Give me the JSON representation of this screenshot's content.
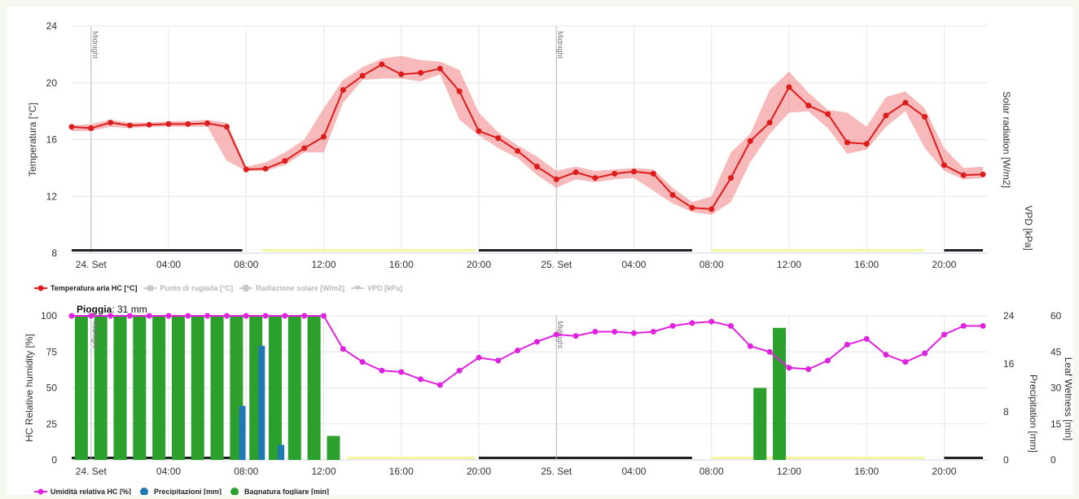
{
  "chart_data": [
    {
      "type": "line",
      "ylabel": "Temperatura [°C]",
      "ylim": [
        8,
        24
      ],
      "yticks": [
        "8",
        "12",
        "16",
        "20",
        "24"
      ],
      "right_axis_labels": [
        "Solar radiation [W/m2]",
        "VPD [kPa]"
      ],
      "x_tick_labels": [
        "24. Set",
        "04:00",
        "08:00",
        "12:00",
        "16:00",
        "20:00",
        "25. Set",
        "04:00",
        "08:00",
        "12:00",
        "16:00",
        "20:00"
      ],
      "x_tick_hours": [
        0,
        4,
        8,
        12,
        16,
        20,
        24,
        28,
        32,
        36,
        40,
        44
      ],
      "midnight_label": "Midnight",
      "midnight_hours": [
        0,
        24
      ],
      "x_hours": [
        -1,
        0,
        1,
        2,
        3,
        4,
        5,
        6,
        7,
        8,
        9,
        10,
        11,
        12,
        13,
        14,
        15,
        16,
        17,
        18,
        19,
        20,
        21,
        22,
        23,
        24,
        25,
        26,
        27,
        28,
        29,
        30,
        31,
        32,
        33,
        34,
        35,
        36,
        37,
        38,
        39,
        40,
        41,
        42,
        43,
        44,
        45,
        46
      ],
      "series": [
        {
          "name": "Temperatura aria HC [°C]",
          "color": "#dd1c1c",
          "values": [
            16.9,
            16.8,
            17.2,
            17.0,
            17.05,
            17.1,
            17.1,
            17.15,
            16.9,
            13.9,
            13.95,
            14.5,
            15.4,
            16.2,
            19.5,
            20.5,
            21.3,
            20.6,
            20.7,
            21.0,
            19.4,
            16.6,
            16.1,
            15.2,
            14.1,
            13.2,
            13.7,
            13.3,
            13.6,
            13.75,
            13.6,
            12.1,
            11.2,
            11.1,
            13.3,
            15.9,
            17.2,
            19.7,
            18.4,
            17.8,
            15.8,
            15.7,
            17.7,
            18.6,
            17.6,
            14.2,
            13.5,
            13.55
          ],
          "range_low": [
            16.6,
            16.6,
            16.9,
            16.8,
            16.9,
            16.9,
            16.9,
            16.9,
            14.5,
            13.8,
            13.8,
            14.2,
            15.1,
            15.1,
            18.6,
            20.2,
            20.3,
            20.3,
            20.1,
            20.6,
            17.4,
            16.3,
            15.4,
            14.7,
            13.5,
            12.6,
            13.2,
            13.0,
            13.2,
            13.3,
            12.4,
            11.5,
            10.9,
            10.7,
            11.6,
            14.4,
            16.4,
            17.9,
            18.0,
            16.8,
            15.0,
            15.3,
            16.9,
            18.0,
            15.4,
            13.8,
            13.2,
            13.3
          ],
          "range_high": [
            17.0,
            17.1,
            17.4,
            17.2,
            17.2,
            17.3,
            17.3,
            17.4,
            17.2,
            14.1,
            14.4,
            15.1,
            16.0,
            18.2,
            20.2,
            21.1,
            21.7,
            21.9,
            21.6,
            21.5,
            20.9,
            17.9,
            16.5,
            15.6,
            14.8,
            13.8,
            14.1,
            13.8,
            13.9,
            14.0,
            13.9,
            12.6,
            11.6,
            12.0,
            15.1,
            16.4,
            19.5,
            20.8,
            19.3,
            18.1,
            17.9,
            16.9,
            19.0,
            19.4,
            18.2,
            15.4,
            14.0,
            14.1
          ]
        }
      ],
      "day_night_bars": [
        {
          "from": -1,
          "to": 7.8,
          "color": "#222222"
        },
        {
          "from": 8.8,
          "to": 19.8,
          "color": "#f5f5a0"
        },
        {
          "from": 20.0,
          "to": 31.0,
          "color": "#222222"
        },
        {
          "from": 32.0,
          "to": 43.0,
          "color": "#f5f5a0"
        },
        {
          "from": 44.0,
          "to": 46.0,
          "color": "#222222"
        }
      ],
      "legend": [
        {
          "label": "Temperatura aria HC [°C]",
          "active": true,
          "color": "#dd1c1c"
        },
        {
          "label": "Punto di rugiada [°C]",
          "active": false,
          "color": "#c8c8c8"
        },
        {
          "label": "Radiazione solare [W/m2]",
          "active": false,
          "color": "#c8c8c8"
        },
        {
          "label": "VPD [kPa]",
          "active": false,
          "color": "#c8c8c8"
        }
      ]
    },
    {
      "type": "bar",
      "rain_label": "Pioggia",
      "rain_value": ": 31 mm",
      "ylabel": "HC Relative humidity [%]",
      "ylim": [
        0,
        100
      ],
      "yticks": [
        "0",
        "25",
        "50",
        "75",
        "100"
      ],
      "y2label": "Precipitation [mm]",
      "y2lim": [
        0,
        24
      ],
      "y2ticks": [
        "0",
        "8",
        "16",
        "24"
      ],
      "y3label": "Leaf Wetness [min]",
      "y3lim": [
        0,
        60
      ],
      "y3ticks": [
        "0",
        "15",
        "30",
        "45",
        "60"
      ],
      "x_tick_labels": [
        "24. Set",
        "04:00",
        "08:00",
        "12:00",
        "16:00",
        "20:00",
        "25. Set",
        "04:00",
        "08:00",
        "12:00",
        "16:00",
        "20:00"
      ],
      "x_tick_hours": [
        0,
        4,
        8,
        12,
        16,
        20,
        24,
        28,
        32,
        36,
        40,
        44
      ],
      "midnight_label": "Midnight",
      "midnight_hours": [
        0,
        24
      ],
      "humidity": {
        "name": "Umidità relativa HC [%]",
        "color": "#e022e0",
        "x": [
          -1,
          0,
          1,
          2,
          3,
          4,
          5,
          6,
          7,
          8,
          9,
          10,
          11,
          12,
          13,
          14,
          15,
          16,
          17,
          18,
          19,
          20,
          21,
          22,
          23,
          24,
          25,
          26,
          27,
          28,
          29,
          30,
          31,
          32,
          33,
          34,
          35,
          36,
          37,
          38,
          39,
          40,
          41,
          42,
          43,
          44,
          45,
          46
        ],
        "values": [
          100,
          100,
          100,
          100,
          100,
          100,
          100,
          100,
          100,
          100,
          100,
          100,
          100,
          100,
          77,
          68,
          62,
          61,
          56,
          52,
          62,
          71,
          69,
          76,
          82,
          87,
          86,
          89,
          89,
          88,
          89,
          93,
          95,
          96,
          93,
          79,
          75,
          64,
          63,
          69,
          80,
          84,
          73,
          68,
          74,
          87,
          93,
          93
        ]
      },
      "leaf_wetness": {
        "name": "Bagnatura fogliare [min]",
        "color": "#2ca02c",
        "x": [
          -0.5,
          0.5,
          1.5,
          2.5,
          3.5,
          4.5,
          5.5,
          6.5,
          7.5,
          8.5,
          9.5,
          10.5,
          11.5,
          12.5,
          34.5,
          35.5
        ],
        "values": [
          60,
          60,
          60,
          60,
          60,
          60,
          60,
          60,
          60,
          60,
          60,
          60,
          60,
          10,
          30,
          55
        ]
      },
      "precipitation": {
        "name": "Precipitazioni [mm]",
        "color": "#1f77b4",
        "x": [
          7.8,
          8.8,
          9.8
        ],
        "values": [
          9,
          19,
          2.5
        ]
      },
      "day_night_bars": [
        {
          "from": -1,
          "to": 7.8,
          "color": "#222222"
        },
        {
          "from": 13.2,
          "to": 19.8,
          "color": "#f5f5a0"
        },
        {
          "from": 20.0,
          "to": 31.0,
          "color": "#222222"
        },
        {
          "from": 32.0,
          "to": 43.0,
          "color": "#f5f5a0"
        },
        {
          "from": 44.0,
          "to": 46.0,
          "color": "#222222"
        }
      ],
      "legend": [
        {
          "label": "Umidità relativa HC [%]",
          "active": true,
          "color": "#e022e0"
        },
        {
          "label": "Precipitazioni [mm]",
          "active": true,
          "color": "#1f77b4"
        },
        {
          "label": "Bagnatura fogliare [min]",
          "active": true,
          "color": "#2ca02c"
        }
      ]
    }
  ]
}
